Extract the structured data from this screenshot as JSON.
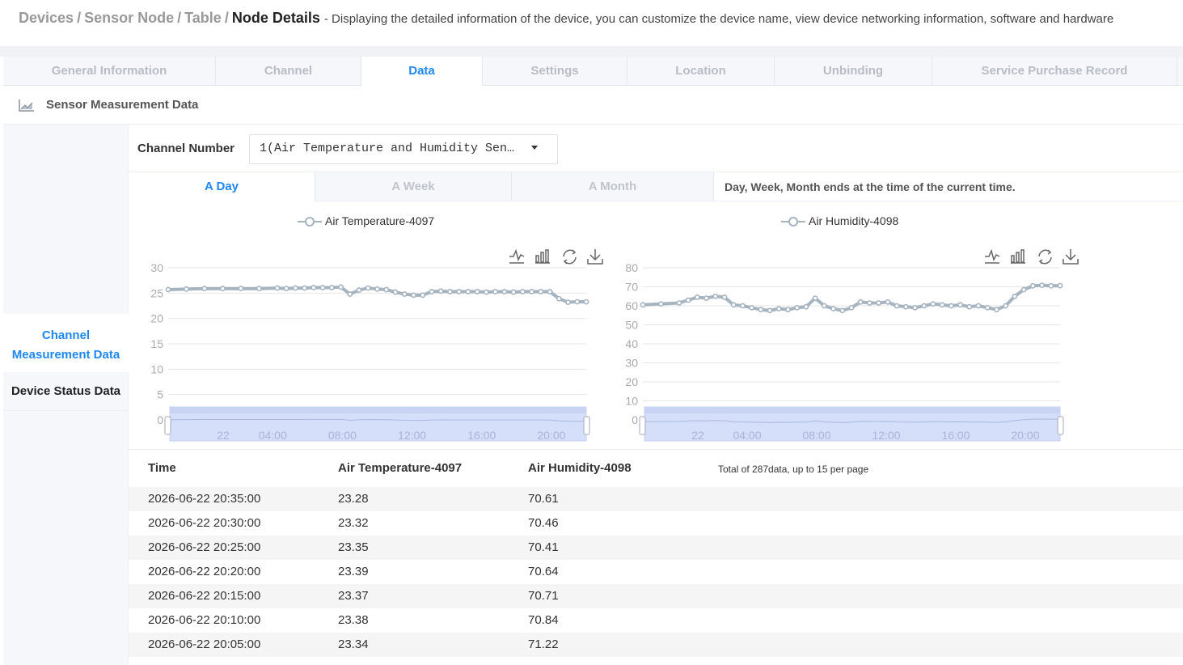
{
  "breadcrumb": {
    "items": [
      "Devices",
      "Sensor Node",
      "Table"
    ],
    "current": "Node Details",
    "description": "- Displaying the detailed information of the device, you can customize the device name, view device networking information, software and hardware"
  },
  "tabs": [
    "General Information",
    "Channel",
    "Data",
    "Settings",
    "Location",
    "Unbinding",
    "Service Purchase Record"
  ],
  "active_tab": "Data",
  "section_title": "Sensor Measurement Data",
  "sidebar": {
    "items": [
      "Channel Measurement Data",
      "Device Status Data"
    ],
    "active": "Channel Measurement Data"
  },
  "channel": {
    "label": "Channel Number",
    "value": "1(Air Temperature and Humidity Sen…"
  },
  "ranges": [
    "A Day",
    "A Week",
    "A Month"
  ],
  "active_range": "A Day",
  "range_note": "Day, Week, Month ends at the time of the current time.",
  "toolbox_icons": [
    "line-chart-icon",
    "bar-chart-icon",
    "refresh-icon",
    "download-icon"
  ],
  "colors": {
    "accent": "#1e87f0",
    "series_line": "#a6b4c0",
    "zoom_fill": "#d6dff9"
  },
  "chart_data": [
    {
      "type": "line",
      "legend": [
        "Air Temperature-4097"
      ],
      "ylim": [
        0,
        30
      ],
      "yticks": [
        "0",
        "5",
        "10",
        "15",
        "20",
        "25",
        "30"
      ],
      "zoom_labels": [
        "22",
        "04:00",
        "08:00",
        "12:00",
        "16:00",
        "20:00"
      ],
      "x_hours": [
        0,
        2,
        4,
        6,
        8,
        10,
        12,
        13,
        14,
        15,
        16,
        17,
        18,
        19,
        20,
        21,
        22,
        23,
        24,
        25,
        26,
        27,
        28,
        29,
        30,
        31,
        32,
        33,
        34,
        35,
        36,
        37,
        38,
        39,
        40,
        41,
        42,
        43,
        44,
        45,
        46
      ],
      "series": [
        {
          "name": "Air Temperature-4097",
          "values": [
            25.7,
            25.8,
            25.9,
            25.9,
            25.9,
            25.9,
            26.0,
            25.9,
            26.0,
            26.0,
            26.1,
            26.1,
            26.1,
            26.2,
            24.8,
            25.6,
            26.0,
            25.8,
            25.7,
            25.2,
            24.8,
            24.6,
            24.6,
            25.3,
            25.4,
            25.3,
            25.3,
            25.3,
            25.3,
            25.2,
            25.3,
            25.3,
            25.2,
            25.3,
            25.3,
            25.3,
            25.3,
            23.9,
            23.2,
            23.3,
            23.28
          ]
        }
      ]
    },
    {
      "type": "line",
      "legend": [
        "Air Humidity-4098"
      ],
      "ylim": [
        0,
        80
      ],
      "yticks": [
        "0",
        "10",
        "20",
        "30",
        "40",
        "50",
        "60",
        "70",
        "80"
      ],
      "zoom_labels": [
        "22",
        "04:00",
        "08:00",
        "12:00",
        "16:00",
        "20:00"
      ],
      "x_hours": [
        0,
        2,
        4,
        5,
        6,
        7,
        8,
        9,
        10,
        11,
        12,
        13,
        14,
        15,
        16,
        17,
        18,
        19,
        20,
        21,
        22,
        23,
        24,
        25,
        26,
        27,
        28,
        29,
        30,
        31,
        32,
        33,
        34,
        35,
        36,
        37,
        38,
        39,
        40,
        41,
        42,
        43,
        44,
        45,
        46
      ],
      "series": [
        {
          "name": "Air Humidity-4098",
          "values": [
            60.5,
            61.0,
            61.5,
            63.0,
            64.5,
            64.0,
            65.0,
            64.5,
            60.5,
            60.0,
            59.0,
            58.0,
            57.5,
            58.5,
            58.0,
            59.0,
            59.5,
            64.0,
            60.0,
            58.5,
            57.5,
            59.0,
            62.0,
            61.5,
            61.5,
            62.0,
            60.0,
            59.5,
            59.0,
            60.0,
            61.0,
            60.5,
            60.0,
            60.5,
            59.5,
            60.0,
            59.0,
            58.0,
            60.0,
            65.0,
            68.5,
            70.5,
            70.8,
            70.5,
            70.61
          ]
        }
      ]
    }
  ],
  "table": {
    "headers": [
      "Time",
      "Air Temperature-4097",
      "Air Humidity-4098"
    ],
    "total_text": "Total of 287data, up to 15 per page",
    "rows": [
      [
        "2026-06-22 20:35:00",
        "23.28",
        "70.61"
      ],
      [
        "2026-06-22 20:30:00",
        "23.32",
        "70.46"
      ],
      [
        "2026-06-22 20:25:00",
        "23.35",
        "70.41"
      ],
      [
        "2026-06-22 20:20:00",
        "23.39",
        "70.64"
      ],
      [
        "2026-06-22 20:15:00",
        "23.37",
        "70.71"
      ],
      [
        "2026-06-22 20:10:00",
        "23.38",
        "70.84"
      ],
      [
        "2026-06-22 20:05:00",
        "23.34",
        "71.22"
      ]
    ]
  }
}
